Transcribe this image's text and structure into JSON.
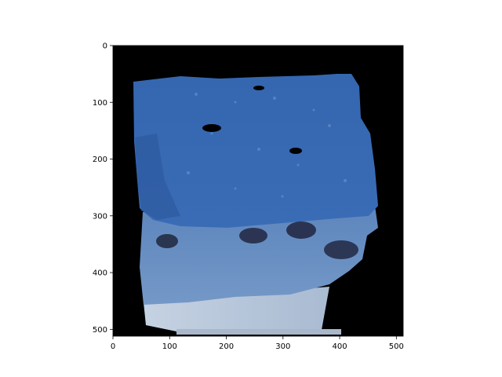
{
  "chart_data": {
    "type": "image",
    "xlabel": "",
    "ylabel": "",
    "xlim": [
      0,
      512
    ],
    "ylim": [
      512,
      0
    ],
    "x_ticks": [
      0,
      100,
      200,
      300,
      400,
      500
    ],
    "y_ticks": [
      0,
      100,
      200,
      300,
      400,
      500
    ],
    "x_tick_labels": [
      "0",
      "100",
      "200",
      "300",
      "400",
      "500"
    ],
    "y_tick_labels": [
      "0",
      "100",
      "200",
      "300",
      "400",
      "500"
    ],
    "background_color": "#000000",
    "image_subject": "blue-tinted-cake-slice",
    "colors": {
      "frosting_top": "#3f6fb8",
      "frosting_dark": "#2e579a",
      "cake_body": "#6f95c6",
      "berries": "#2a3550",
      "base_layer": "#b9c8dc"
    }
  }
}
